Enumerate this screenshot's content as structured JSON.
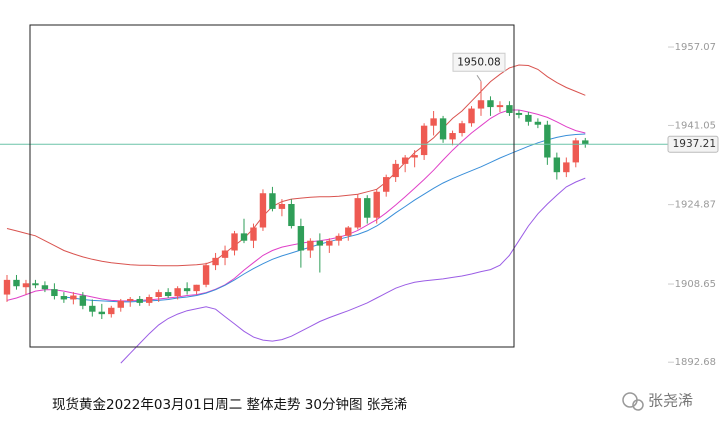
{
  "chart_data": {
    "type": "candlestick",
    "caption": "现货黄金2022年03月01日周二 整体走势  30分钟图  张尧浠",
    "watermark": "张尧浠",
    "ylim": [
      1887,
      1966.68
    ],
    "yticks": [
      1957.07,
      1941.05,
      1924.87,
      1908.65,
      1892.68
    ],
    "up_color": "#ee5a52",
    "down_color": "#2f9e58",
    "last_price_color": "#6cc3a8",
    "open": [
      1906.5,
      1909.5,
      1908,
      1908.8,
      1908.4,
      1907.6,
      1906.2,
      1905.5,
      1906.3,
      1904.2,
      1903,
      1902.5,
      1903.8,
      1905.2,
      1905.6,
      1904.8,
      1906,
      1907,
      1906.2,
      1907.8,
      1907.2,
      1908.5,
      1912.5,
      1914,
      1915.5,
      1919,
      1917.5,
      1920.2,
      1927.2,
      1924,
      1925,
      1920.5,
      1915.5,
      1917.5,
      1916.5,
      1917.5,
      1918.5,
      1920.2,
      1926.2,
      1922.2,
      1927.5,
      1930.5,
      1933.2,
      1934.5,
      1935,
      1941,
      1942.5,
      1938.2,
      1939.5,
      1941.5,
      1944.5,
      1946.2,
      1944.8,
      1945.2,
      1943.6,
      1943.2,
      1941.8,
      1941.2,
      1934.5,
      1931.5,
      1933.5,
      1938
    ],
    "high": [
      1910.5,
      1910.5,
      1909.5,
      1909.5,
      1909.2,
      1908.8,
      1907,
      1907,
      1907,
      1905.5,
      1904.6,
      1904.2,
      1905.6,
      1906,
      1906.2,
      1906.5,
      1907.5,
      1907.8,
      1908.2,
      1909,
      1908.5,
      1913,
      1915,
      1916.5,
      1919.5,
      1922,
      1921,
      1928,
      1928.5,
      1926,
      1926,
      1922,
      1918,
      1919,
      1918,
      1919,
      1920.5,
      1927,
      1926.8,
      1928,
      1931,
      1934,
      1935,
      1936,
      1941.5,
      1944,
      1943,
      1940,
      1942,
      1945,
      1950.08,
      1947,
      1946,
      1946,
      1944.2,
      1943.8,
      1942.5,
      1942,
      1935.5,
      1934.5,
      1938.5,
      1938.5
    ],
    "low": [
      1905,
      1907.5,
      1906.5,
      1907.8,
      1907,
      1905.5,
      1904.8,
      1904.5,
      1903.5,
      1902,
      1901.5,
      1901.8,
      1903,
      1904,
      1904.2,
      1904.2,
      1905,
      1905.8,
      1905.5,
      1906.5,
      1906.5,
      1908,
      1911.5,
      1912.5,
      1914.5,
      1917,
      1916,
      1919.5,
      1923.5,
      1922.5,
      1920,
      1912,
      1914,
      1911,
      1915,
      1916.5,
      1917.5,
      1919.8,
      1921,
      1921,
      1926.5,
      1929.5,
      1931.5,
      1932.5,
      1934,
      1939,
      1937.5,
      1937,
      1938.8,
      1940.8,
      1943,
      1943,
      1943.8,
      1943,
      1942.5,
      1941,
      1940.5,
      1933,
      1930,
      1930.5,
      1932.5,
      1936.5
    ],
    "close": [
      1909.5,
      1908.2,
      1908.8,
      1908.4,
      1907.6,
      1906.2,
      1905.5,
      1906.3,
      1904.2,
      1903,
      1902.5,
      1903.8,
      1905.2,
      1905.6,
      1904.8,
      1906,
      1907,
      1906.2,
      1907.8,
      1907.2,
      1908.5,
      1912.5,
      1914,
      1915.5,
      1919,
      1917.5,
      1920.2,
      1927.2,
      1924,
      1925,
      1920.5,
      1915.5,
      1917.5,
      1916.5,
      1917.5,
      1918.5,
      1920.2,
      1926.2,
      1922.2,
      1927.5,
      1930.5,
      1933.2,
      1934.5,
      1935,
      1941,
      1942.5,
      1938.2,
      1939.5,
      1941.5,
      1944.5,
      1946.2,
      1944.8,
      1945.2,
      1943.6,
      1943.2,
      1941.8,
      1941.2,
      1934.5,
      1931.5,
      1933.5,
      1938,
      1937.21
    ],
    "lines": [
      {
        "color": "#d9534f",
        "values": [
          1920,
          1919.5,
          1919,
          1918.5,
          1917.5,
          1916.5,
          1915.5,
          1914.8,
          1914.2,
          1913.7,
          1913.3,
          1913,
          1912.8,
          1912.6,
          1912.5,
          1912.5,
          1912.4,
          1912.4,
          1912.4,
          1912.5,
          1912.6,
          1912.8,
          1913.5,
          1915,
          1916.5,
          1918,
          1920,
          1922.5,
          1924.5,
          1925.5,
          1926,
          1926.2,
          1926.4,
          1926.5,
          1926.5,
          1926.6,
          1926.8,
          1927,
          1927.5,
          1928,
          1929.5,
          1931.5,
          1933.5,
          1935.5,
          1937,
          1938.5,
          1940.5,
          1942.5,
          1944,
          1946,
          1948,
          1950,
          1951.5,
          1952.8,
          1953.4,
          1953.3,
          1952.5,
          1951,
          1949.8,
          1948.8,
          1948,
          1947.2
        ]
      },
      {
        "color": "#e040c8",
        "values": [
          1905.3,
          1905.8,
          1906.5,
          1907.2,
          1907.5,
          1907.5,
          1907.2,
          1906.8,
          1906.4,
          1906,
          1905.6,
          1905.3,
          1905.2,
          1905.2,
          1905.3,
          1905.4,
          1905.6,
          1905.8,
          1906,
          1906.3,
          1906.5,
          1906.9,
          1907.6,
          1908.5,
          1909.8,
          1911.5,
          1913,
          1914.5,
          1915.5,
          1916.2,
          1916.6,
          1917,
          1917.3,
          1917.5,
          1917.8,
          1918.2,
          1918.8,
          1919.6,
          1920.7,
          1921.8,
          1923.2,
          1924.8,
          1926.5,
          1928.2,
          1930,
          1931.9,
          1934,
          1936,
          1937.8,
          1939.5,
          1941,
          1942.5,
          1943.6,
          1944.2,
          1944.2,
          1943.8,
          1943.3,
          1942.7,
          1941.8,
          1940.8,
          1940,
          1939.5
        ]
      },
      {
        "color": "#9b5de5",
        "values": [
          null,
          null,
          null,
          null,
          null,
          null,
          null,
          null,
          null,
          null,
          null,
          null,
          1892.5,
          1894.5,
          1896.5,
          1898.5,
          1900.3,
          1901.6,
          1902.5,
          1903.2,
          1903.6,
          1904,
          1903.5,
          1902,
          1900.5,
          1899,
          1897.8,
          1897.2,
          1897,
          1897.3,
          1898,
          1899,
          1900,
          1901,
          1901.8,
          1902.5,
          1903.2,
          1904,
          1904.8,
          1905.8,
          1906.8,
          1907.8,
          1908.5,
          1909,
          1909.3,
          1909.5,
          1909.7,
          1910,
          1910.3,
          1910.7,
          1911.2,
          1911.6,
          1912.5,
          1914.5,
          1917.5,
          1920.5,
          1923,
          1925,
          1926.8,
          1928.5,
          1929.5,
          1930.3
        ]
      },
      {
        "color": "#3a8fd9",
        "values": [
          null,
          null,
          null,
          null,
          null,
          null,
          1906,
          1905.8,
          1905.5,
          1905.3,
          1905.2,
          1905.1,
          1905,
          1905,
          1905.1,
          1905.2,
          1905.3,
          1905.5,
          1905.8,
          1906,
          1906.3,
          1906.8,
          1907.5,
          1908.4,
          1909.5,
          1910.7,
          1911.8,
          1912.8,
          1913.7,
          1914.4,
          1915,
          1915.6,
          1916.2,
          1916.8,
          1917.3,
          1917.8,
          1918.3,
          1918.8,
          1919.5,
          1920.5,
          1921.8,
          1923.2,
          1924.5,
          1925.8,
          1927,
          1928.2,
          1929.3,
          1930.2,
          1931,
          1931.8,
          1932.6,
          1933.5,
          1934.4,
          1935.2,
          1936,
          1936.8,
          1937.5,
          1938.1,
          1938.6,
          1939,
          1939.2,
          1939.3
        ]
      }
    ]
  }
}
